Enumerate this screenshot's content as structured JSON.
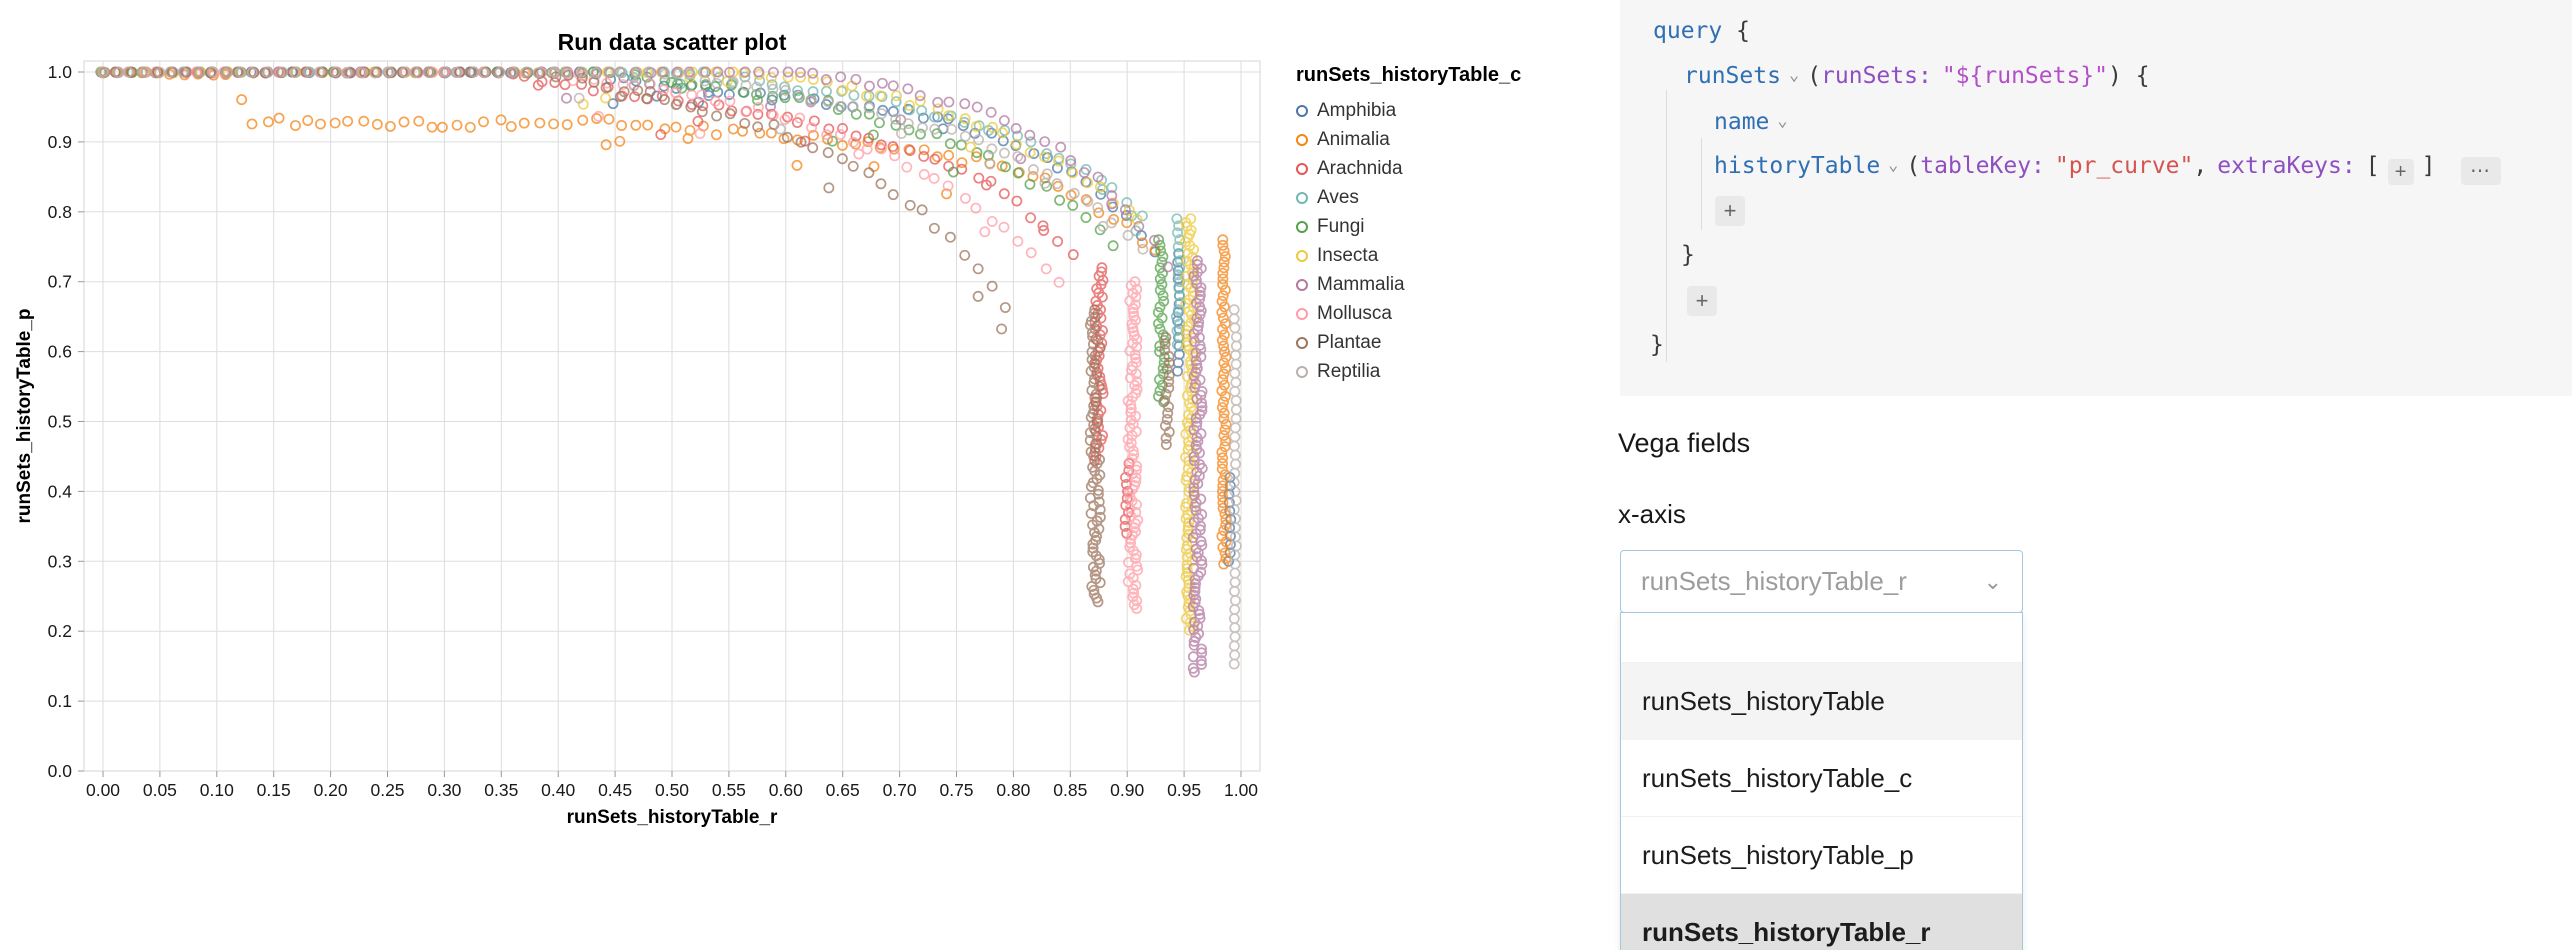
{
  "chart_data": {
    "type": "scatter",
    "title": "Run data scatter plot",
    "xlabel": "runSets_historyTable_r",
    "ylabel": "runSets_historyTable_p",
    "legend_title": "runSets_historyTable_c",
    "xlim": [
      0,
      1
    ],
    "ylim": [
      0,
      1
    ],
    "x_tick_step": 0.05,
    "y_tick_step": 0.1,
    "x_ticks": [
      "0.00",
      "0.05",
      "0.10",
      "0.15",
      "0.20",
      "0.25",
      "0.30",
      "0.35",
      "0.40",
      "0.45",
      "0.50",
      "0.55",
      "0.60",
      "0.65",
      "0.70",
      "0.75",
      "0.80",
      "0.85",
      "0.90",
      "0.95",
      "1.00"
    ],
    "y_ticks": [
      "0.0",
      "0.1",
      "0.2",
      "0.3",
      "0.4",
      "0.5",
      "0.6",
      "0.7",
      "0.8",
      "0.9",
      "1.0"
    ],
    "grid": true,
    "legend_position": "right",
    "point_style": "open-circle",
    "seed": 42,
    "series": [
      {
        "name": "Amphibia",
        "color": "#4c78a8",
        "curve": [
          [
            0,
            1
          ],
          [
            0.42,
            1
          ],
          [
            0.52,
            0.975
          ],
          [
            0.62,
            0.96
          ],
          [
            0.72,
            0.94
          ],
          [
            0.8,
            0.9
          ],
          [
            0.86,
            0.85
          ],
          [
            0.9,
            0.79
          ],
          [
            0.93,
            0.73
          ]
        ],
        "tails": [
          {
            "x": 0.945,
            "top": 0.74,
            "bottom": 0.56,
            "jx": 0.001,
            "step": 0.012
          },
          {
            "x": 0.99,
            "top": 0.42,
            "bottom": 0.29,
            "jx": 0.001,
            "step": 0.012
          }
        ]
      },
      {
        "name": "Animalia",
        "color": "#f58518",
        "curve": [
          [
            0,
            1
          ],
          [
            0.11,
            0.995
          ],
          [
            0.13,
            0.93
          ],
          [
            0.3,
            0.925
          ],
          [
            0.45,
            0.93
          ],
          [
            0.58,
            0.91
          ],
          [
            0.68,
            0.895
          ],
          [
            0.78,
            0.87
          ],
          [
            0.85,
            0.83
          ],
          [
            0.9,
            0.78
          ],
          [
            0.93,
            0.73
          ]
        ],
        "tails": [
          {
            "x": 0.985,
            "top": 0.76,
            "bottom": 0.29,
            "jx": 0.002,
            "step": 0.008
          }
        ]
      },
      {
        "name": "Arachnida",
        "color": "#e45756",
        "curve": [
          [
            0,
            1
          ],
          [
            0.35,
            1
          ],
          [
            0.46,
            0.97
          ],
          [
            0.56,
            0.945
          ],
          [
            0.64,
            0.92
          ],
          [
            0.72,
            0.885
          ],
          [
            0.78,
            0.84
          ],
          [
            0.83,
            0.78
          ],
          [
            0.86,
            0.72
          ]
        ],
        "tails": [
          {
            "x": 0.875,
            "top": 0.72,
            "bottom": 0.44,
            "jx": 0.004,
            "step": 0.006
          },
          {
            "x": 0.9,
            "top": 0.44,
            "bottom": 0.33,
            "jx": 0.002,
            "step": 0.01
          }
        ]
      },
      {
        "name": "Aves",
        "color": "#72b7b2",
        "curve": [
          [
            0,
            1
          ],
          [
            0.5,
            1
          ],
          [
            0.6,
            0.98
          ],
          [
            0.7,
            0.955
          ],
          [
            0.78,
            0.92
          ],
          [
            0.84,
            0.88
          ],
          [
            0.89,
            0.83
          ],
          [
            0.92,
            0.78
          ]
        ],
        "tails": [
          {
            "x": 0.945,
            "top": 0.79,
            "bottom": 0.6,
            "jx": 0.002,
            "step": 0.01
          }
        ]
      },
      {
        "name": "Fungi",
        "color": "#54a24b",
        "curve": [
          [
            0,
            1
          ],
          [
            0.45,
            1
          ],
          [
            0.56,
            0.975
          ],
          [
            0.65,
            0.95
          ],
          [
            0.72,
            0.915
          ],
          [
            0.79,
            0.87
          ],
          [
            0.85,
            0.81
          ],
          [
            0.89,
            0.75
          ]
        ],
        "tails": [
          {
            "x": 0.93,
            "top": 0.76,
            "bottom": 0.52,
            "jx": 0.003,
            "step": 0.008
          }
        ]
      },
      {
        "name": "Insecta",
        "color": "#eeca3b",
        "curve": [
          [
            0,
            1
          ],
          [
            0.56,
            1
          ],
          [
            0.66,
            0.975
          ],
          [
            0.74,
            0.945
          ],
          [
            0.8,
            0.905
          ],
          [
            0.86,
            0.85
          ],
          [
            0.91,
            0.79
          ]
        ],
        "tails": [
          {
            "x": 0.955,
            "top": 0.79,
            "bottom": 0.2,
            "jx": 0.004,
            "step": 0.0055
          }
        ]
      },
      {
        "name": "Mammalia",
        "color": "#b279a2",
        "curve": [
          [
            0,
            1
          ],
          [
            0.62,
            1
          ],
          [
            0.7,
            0.975
          ],
          [
            0.77,
            0.945
          ],
          [
            0.83,
            0.9
          ],
          [
            0.88,
            0.84
          ],
          [
            0.92,
            0.77
          ],
          [
            0.94,
            0.71
          ]
        ],
        "tails": [
          {
            "x": 0.962,
            "top": 0.73,
            "bottom": 0.14,
            "jx": 0.004,
            "step": 0.0055
          }
        ]
      },
      {
        "name": "Mollusca",
        "color": "#ff9da6",
        "curve": [
          [
            0,
            1
          ],
          [
            0.4,
            1
          ],
          [
            0.51,
            0.97
          ],
          [
            0.6,
            0.935
          ],
          [
            0.68,
            0.89
          ],
          [
            0.75,
            0.83
          ],
          [
            0.81,
            0.75
          ],
          [
            0.85,
            0.68
          ]
        ],
        "tails": [
          {
            "x": 0.905,
            "top": 0.7,
            "bottom": 0.23,
            "jx": 0.0045,
            "step": 0.0055
          }
        ]
      },
      {
        "name": "Plantae",
        "color": "#9d755d",
        "curve": [
          [
            0,
            1
          ],
          [
            0.38,
            1
          ],
          [
            0.49,
            0.965
          ],
          [
            0.58,
            0.925
          ],
          [
            0.66,
            0.87
          ],
          [
            0.72,
            0.8
          ],
          [
            0.77,
            0.72
          ],
          [
            0.8,
            0.65
          ]
        ],
        "tails": [
          {
            "x": 0.872,
            "top": 0.66,
            "bottom": 0.24,
            "jx": 0.0045,
            "step": 0.0055
          },
          {
            "x": 0.935,
            "top": 0.62,
            "bottom": 0.46,
            "jx": 0.002,
            "step": 0.009
          }
        ]
      },
      {
        "name": "Reptilia",
        "color": "#bab0ac",
        "curve": [
          [
            0,
            1
          ],
          [
            0.48,
            1
          ],
          [
            0.59,
            0.975
          ],
          [
            0.68,
            0.945
          ],
          [
            0.76,
            0.905
          ],
          [
            0.83,
            0.855
          ],
          [
            0.88,
            0.8
          ],
          [
            0.92,
            0.74
          ]
        ],
        "tails": [
          {
            "x": 0.995,
            "top": 0.66,
            "bottom": 0.15,
            "jx": 0.001,
            "step": 0.013
          }
        ]
      }
    ]
  },
  "query_editor": {
    "keyword": "query",
    "brace_open": "{",
    "brace_close": "}",
    "caret_icon": "⌄",
    "plus_button_label": "+",
    "more_button_label": "⋯",
    "runsets": {
      "field": "runSets",
      "paren_open": "(",
      "arg_name": "runSets:",
      "arg_value": "\"${runSets}\"",
      "paren_close": ") {"
    },
    "name_field": "name",
    "history_table": {
      "field": "historyTable",
      "paren_open": "(",
      "arg1_name": "tableKey:",
      "arg1_value": "\"pr_curve\"",
      "comma": ",",
      "arg2_name": "extraKeys:",
      "bracket_open": "[",
      "bracket_close": "]"
    }
  },
  "vega_fields": {
    "section_title": "Vega fields",
    "field_label": "x-axis",
    "dropdown": {
      "value": "runSets_historyTable_r",
      "caret_icon": "⌄",
      "search_value": "",
      "options": [
        {
          "label": "runSets_historyTable"
        },
        {
          "label": "runSets_historyTable_c"
        },
        {
          "label": "runSets_historyTable_p"
        },
        {
          "label": "runSets_historyTable_r"
        }
      ]
    }
  }
}
